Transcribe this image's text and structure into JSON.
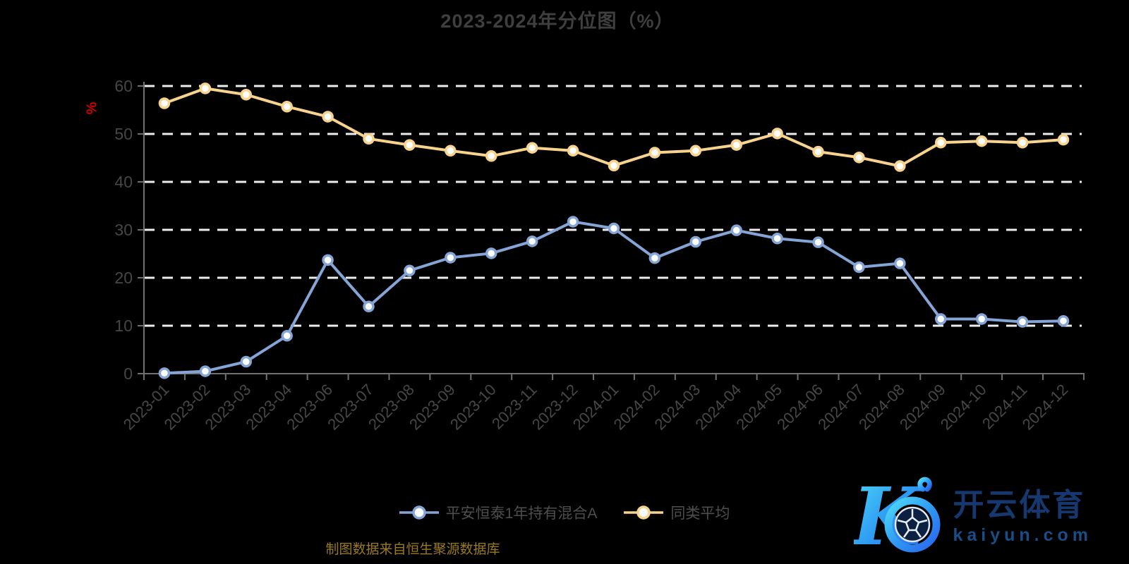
{
  "title": "2023-2024年分位图（%）",
  "y_axis": {
    "unit_label": "%"
  },
  "source_note": "制图数据来自恒生聚源数据库",
  "watermark": {
    "brand_cn": "开云体育",
    "domain": "kaiyun.com",
    "logo": "kaiyun-k-soccer-logo"
  },
  "colors": {
    "background": "#000000",
    "title": "#3f3f3f",
    "axis_line": "#707070",
    "axis_label": "#474747",
    "gridline": "#ececec",
    "unit_label": "#d40000",
    "legend_text": "#4e4e4e",
    "source_note": "#9a7a1e",
    "marker_fill": "#ffffff"
  },
  "chart_data": {
    "type": "line",
    "categories": [
      "2023-01",
      "2023-02",
      "2023-03",
      "2023-04",
      "2023-06",
      "2023-07",
      "2023-08",
      "2023-09",
      "2023-10",
      "2023-11",
      "2023-12",
      "2024-01",
      "2024-02",
      "2024-03",
      "2024-04",
      "2024-05",
      "2024-06",
      "2024-07",
      "2024-08",
      "2024-09",
      "2024-10",
      "2024-11",
      "2024-12"
    ],
    "series": [
      {
        "name": "平安恒泰1年持有混合A",
        "color": "#84a5d6",
        "values": [
          0.1,
          0.5,
          2.5,
          7.9,
          23.7,
          14.0,
          21.5,
          24.2,
          25.1,
          27.6,
          31.7,
          30.3,
          24.1,
          27.5,
          29.9,
          28.2,
          27.4,
          22.2,
          23.0,
          11.4,
          11.4,
          10.8,
          11.0
        ]
      },
      {
        "name": "同类平均",
        "color": "#f8d38e",
        "values": [
          56.4,
          59.5,
          58.2,
          55.7,
          53.6,
          49.0,
          47.7,
          46.5,
          45.4,
          47.1,
          46.5,
          43.4,
          46.1,
          46.5,
          47.7,
          50.1,
          46.3,
          45.1,
          43.3,
          48.2,
          48.5,
          48.2,
          48.8
        ]
      }
    ],
    "ylabel": "%",
    "ylim": [
      0,
      60
    ],
    "yticks": [
      0,
      10,
      20,
      30,
      40,
      50,
      60
    ],
    "grid": true,
    "grid_style": "dashed",
    "x_label_rotation": -45,
    "legend_position": "bottom"
  }
}
